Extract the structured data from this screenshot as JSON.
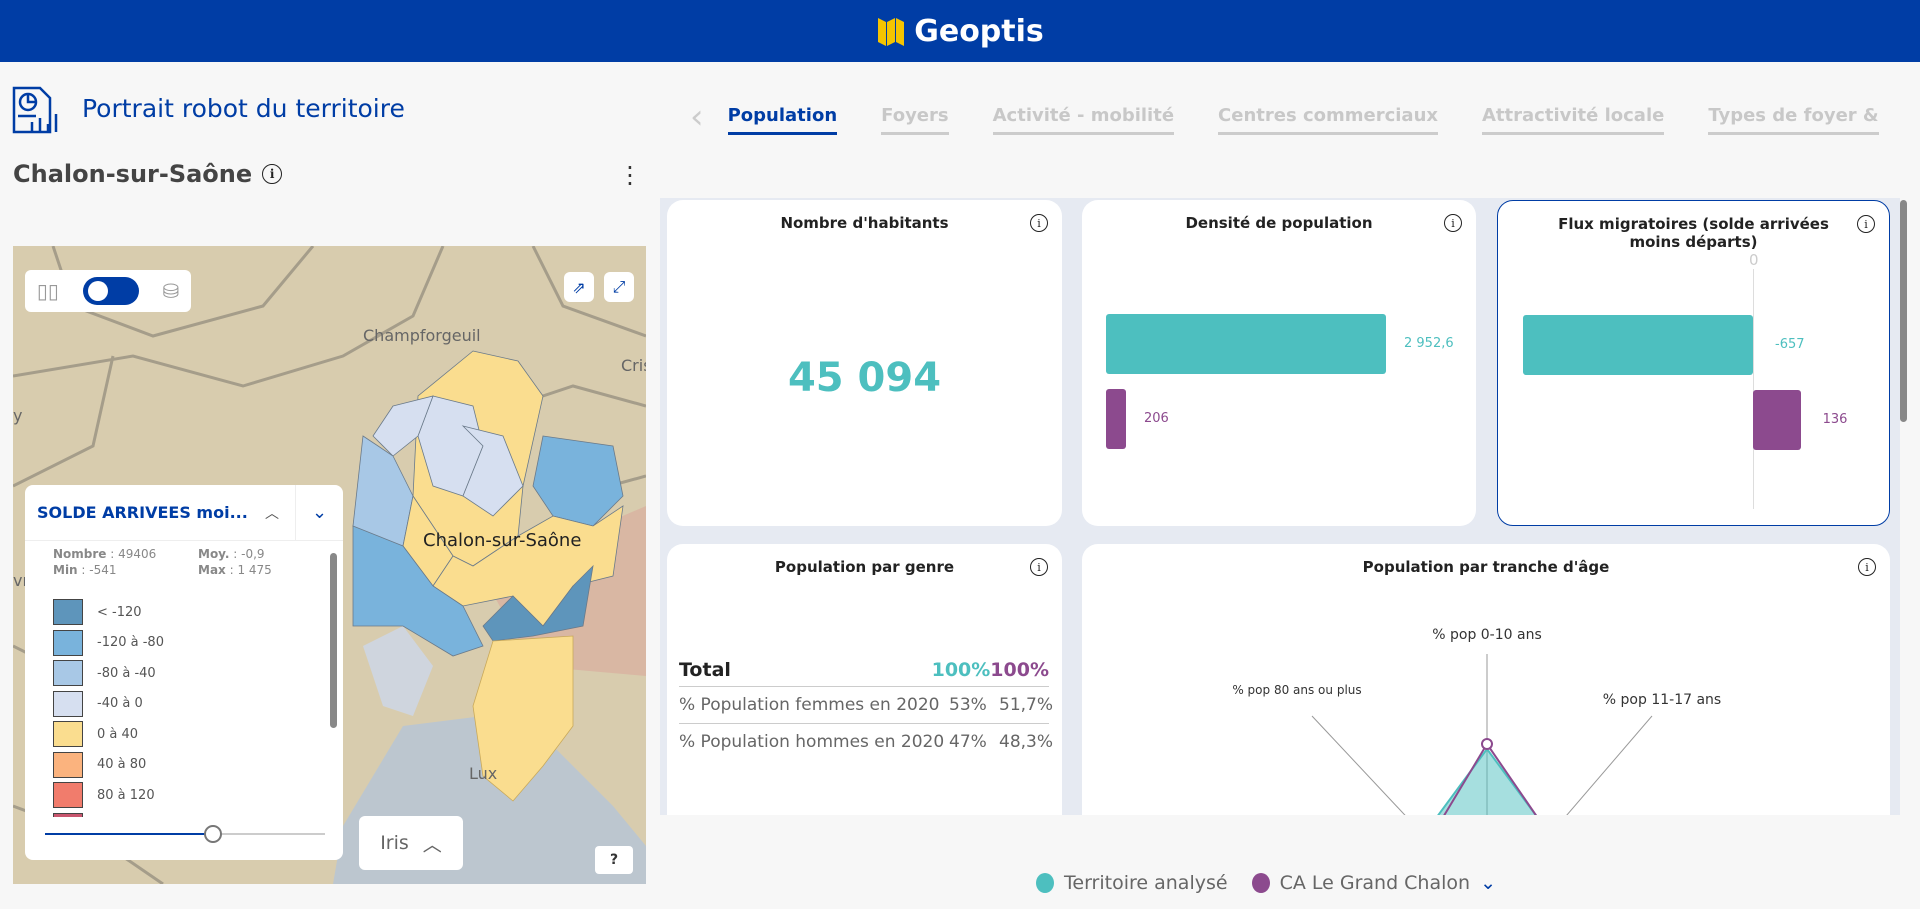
{
  "header": {
    "brand": "Geoptis"
  },
  "page": {
    "title": "Portrait robot du territoire",
    "territory": "Chalon-sur-Saône"
  },
  "tabs": [
    {
      "label": "Population",
      "active": true
    },
    {
      "label": "Foyers"
    },
    {
      "label": "Activité - mobilité"
    },
    {
      "label": "Centres commerciaux"
    },
    {
      "label": "Attractivité locale"
    },
    {
      "label": "Types de foyer &"
    }
  ],
  "map": {
    "labels": {
      "champforgeuil": "Champforgeuil",
      "chalon": "Chalon-sur-Saône",
      "lux": "Lux",
      "cris": "Cris",
      "y": "y",
      "vry": "vry"
    },
    "level": "Iris",
    "help": "?",
    "legend": {
      "title": "SOLDE ARRIVEES moi...",
      "stats": {
        "nombre_label": "Nombre",
        "nombre": "49406",
        "moy_label": "Moy.",
        "moy": "-0,9",
        "min_label": "Min",
        "min": "-541",
        "max_label": "Max",
        "max": "1 475"
      },
      "items": [
        {
          "label": "< -120",
          "color": "#5e95bb"
        },
        {
          "label": "-120 à -80",
          "color": "#79b3dc"
        },
        {
          "label": "-80 à -40",
          "color": "#a8c8e6"
        },
        {
          "label": "-40 à 0",
          "color": "#d6dff0"
        },
        {
          "label": "0 à 40",
          "color": "#fadd8f"
        },
        {
          "label": "40 à 80",
          "color": "#fbb37e"
        },
        {
          "label": "80 à 120",
          "color": "#f17c6c"
        },
        {
          "label": "",
          "color": "#c8566e"
        }
      ],
      "opacity_slider": 0.6
    }
  },
  "colors": {
    "territoire": "#4dbfbf",
    "ca": "#8c4a8e",
    "accent": "#003da5"
  },
  "cards": {
    "habitants": {
      "title": "Nombre d'habitants",
      "value": "45 094"
    },
    "densite": {
      "title": "Densité de population",
      "values": [
        {
          "label": "2 952,6",
          "value": 2952.6
        },
        {
          "label": "206",
          "value": 206
        }
      ]
    },
    "flux": {
      "title": "Flux migratoires (solde arrivées moins départs)",
      "zero": "0",
      "values": [
        {
          "label": "-657",
          "value": -657
        },
        {
          "label": "136",
          "value": 136
        }
      ]
    },
    "genre": {
      "title": "Population par genre",
      "total_label": "Total",
      "total_a": "100%",
      "total_b": "100%",
      "rows": [
        {
          "label": "% Population femmes en 2020",
          "a": "53%",
          "b": "51,7%"
        },
        {
          "label": "% Population hommes en 2020",
          "a": "47%",
          "b": "48,3%"
        }
      ]
    },
    "age": {
      "title": "Population par tranche d'âge",
      "axes": [
        "% pop 0-10 ans",
        "% pop 11-17 ans",
        "% pop 80 ans ou plus"
      ]
    }
  },
  "series_legend": [
    {
      "label": "Territoire analysé"
    },
    {
      "label": "CA Le Grand Chalon"
    }
  ]
}
